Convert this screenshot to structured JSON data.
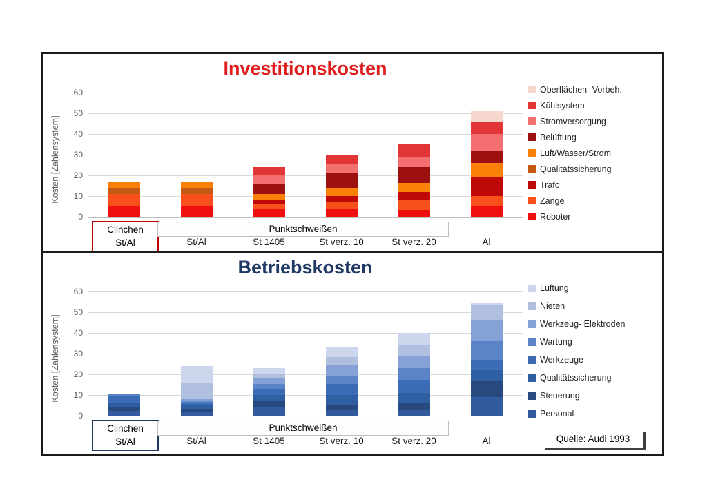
{
  "source_note": "Quelle: Audi 1993",
  "chart_data": [
    {
      "type": "bar",
      "stacked": true,
      "title": "Investitionskosten",
      "title_color": "#df1b1b",
      "ylabel": "Kosten [Zahlensystem]",
      "ylim": [
        0,
        60
      ],
      "yticks": [
        0,
        10,
        20,
        30,
        40,
        50,
        60
      ],
      "grid": true,
      "legend_position": "right",
      "legend_spacing": 23,
      "group_label": "Punktschweißen",
      "highlight_box": {
        "line1": "Clinchen",
        "line2": "St/Al",
        "border_color": "#c00000"
      },
      "categories": [
        "Clinchen St/Al",
        "St/Al",
        "St 1405",
        "St verz. 10",
        "St verz. 20",
        "Al"
      ],
      "series": [
        {
          "name": "Roboter",
          "color": "#ee1010",
          "values": [
            5,
            5,
            4,
            4,
            3.5,
            5
          ]
        },
        {
          "name": "Zange",
          "color": "#f8501a",
          "values": [
            6,
            6,
            2,
            3,
            4.5,
            5
          ]
        },
        {
          "name": "Trafo",
          "color": "#bf0808",
          "values": [
            0,
            0,
            2,
            3,
            4,
            9
          ]
        },
        {
          "name": "Qualitätssicherung",
          "color": "#c45911",
          "values": [
            3,
            3,
            0,
            0,
            0,
            0
          ]
        },
        {
          "name": "Luft/Wasser/Strom",
          "color": "#fb8008",
          "values": [
            3,
            3,
            3,
            4,
            4.5,
            7
          ]
        },
        {
          "name": "Belüftung",
          "color": "#9c1010",
          "values": [
            0,
            0,
            5,
            7,
            7.5,
            6
          ]
        },
        {
          "name": "Stromversorgung",
          "color": "#f47070",
          "values": [
            0,
            0,
            4,
            4.5,
            5,
            8
          ]
        },
        {
          "name": "Kühlsystem",
          "color": "#e23535",
          "values": [
            0,
            0,
            4,
            4.5,
            6,
            6
          ]
        },
        {
          "name": "Oberflächen- Vorbeh.",
          "color": "#f7d7cd",
          "values": [
            0,
            0,
            0,
            0,
            0,
            5
          ]
        }
      ],
      "totals": [
        17,
        17,
        24,
        30,
        35,
        51
      ]
    },
    {
      "type": "bar",
      "stacked": true,
      "title": "Betriebskosten",
      "title_color": "#1f3864",
      "ylabel": "Kosten [Zahlensystem]",
      "ylim": [
        0,
        60
      ],
      "yticks": [
        0,
        10,
        20,
        30,
        40,
        50,
        60
      ],
      "grid": true,
      "legend_position": "right",
      "legend_spacing": 26,
      "group_label": "Punktschweißen",
      "highlight_box": {
        "line1": "Clinchen",
        "line2": "St/Al",
        "border_color": "#1f3864"
      },
      "categories": [
        "Clinchen St/Al",
        "St/Al",
        "St 1405",
        "St verz. 10",
        "St verz. 20",
        "Al"
      ],
      "series": [
        {
          "name": "Personal",
          "color": "#325a9e",
          "values": [
            2.5,
            2,
            4,
            3,
            3,
            9
          ]
        },
        {
          "name": "Steuerung",
          "color": "#27497e",
          "values": [
            2,
            1.5,
            3.5,
            2.5,
            3,
            8
          ]
        },
        {
          "name": "Qualitätssicherung",
          "color": "#2f5fa3",
          "values": [
            1.5,
            1.5,
            2.5,
            4.5,
            5,
            5
          ]
        },
        {
          "name": "Werkzeuge",
          "color": "#3c6cb5",
          "values": [
            3.5,
            1.5,
            3,
            5.5,
            6.5,
            5
          ]
        },
        {
          "name": "Wartung",
          "color": "#5b84c8",
          "values": [
            1,
            1,
            2.5,
            4,
            5.5,
            9
          ]
        },
        {
          "name": "Werkzeug- Elektroden",
          "color": "#85a1d6",
          "values": [
            0,
            0.5,
            3,
            5,
            6,
            10
          ]
        },
        {
          "name": "Nieten",
          "color": "#b0bfe0",
          "values": [
            0,
            8,
            2,
            4,
            5,
            7.5
          ]
        },
        {
          "name": "Lüftung",
          "color": "#ccd6ec",
          "values": [
            0,
            8,
            2.5,
            4.5,
            6,
            1
          ]
        }
      ],
      "totals": [
        10.5,
        24,
        23,
        33,
        40,
        54.5
      ]
    }
  ]
}
